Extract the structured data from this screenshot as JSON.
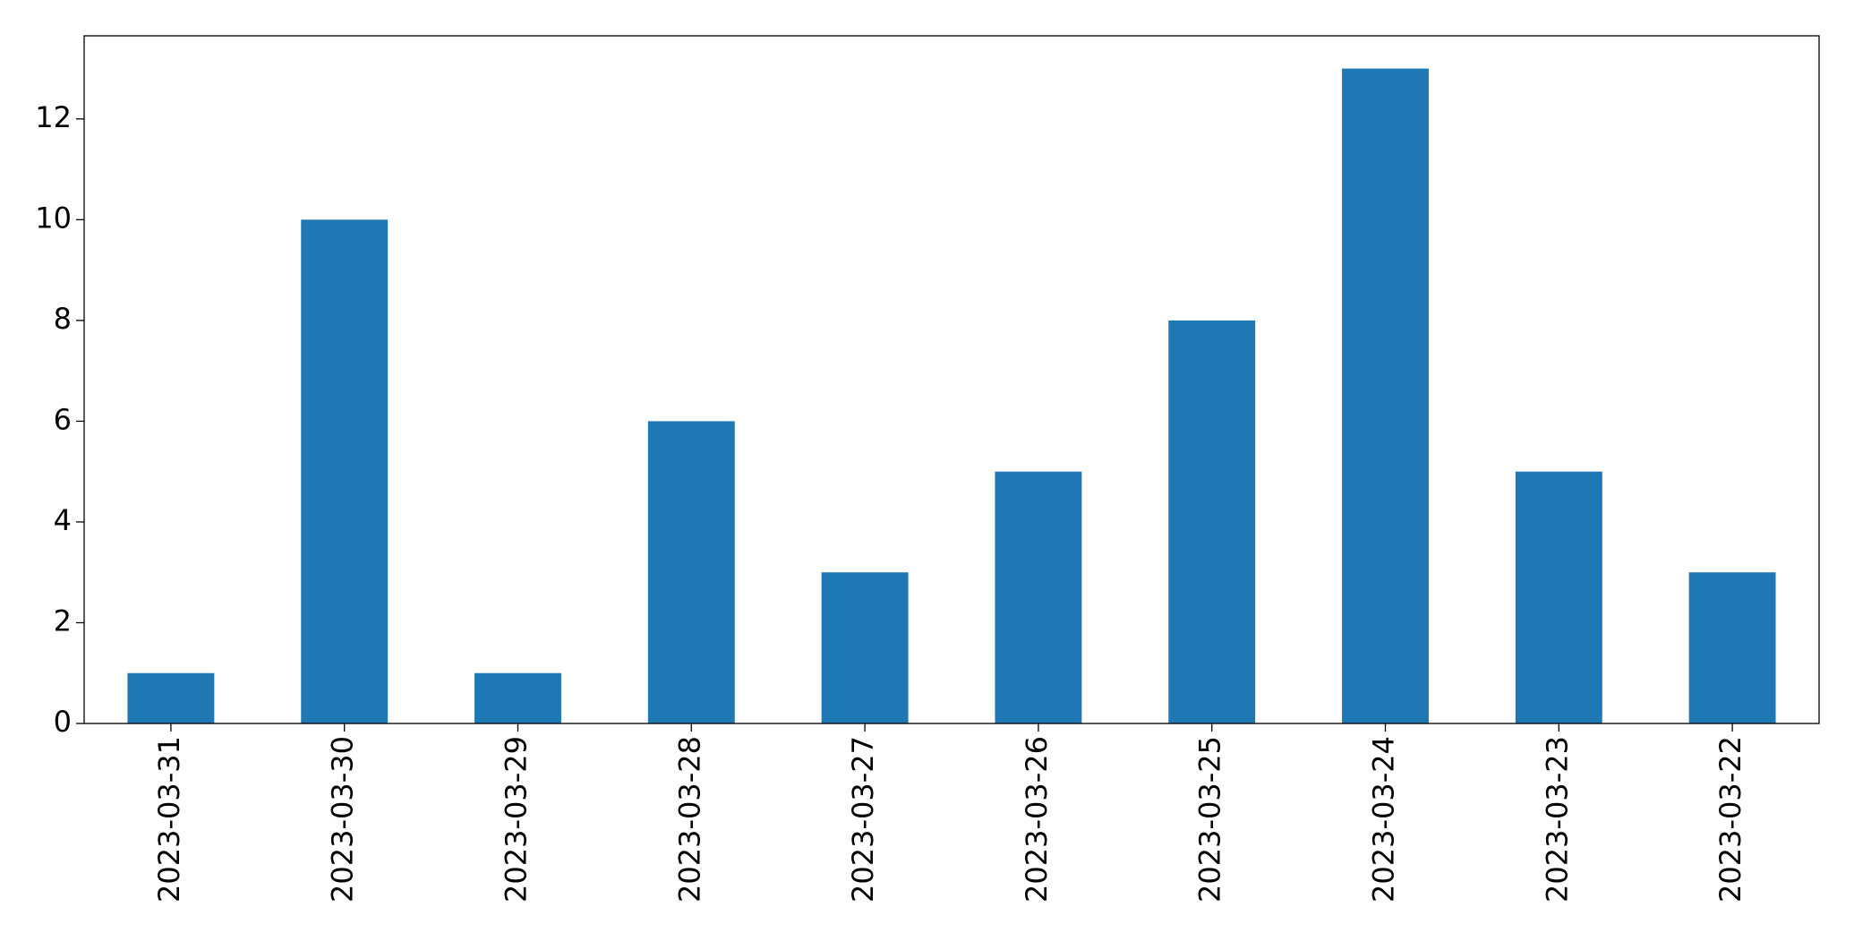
{
  "chart_data": {
    "type": "bar",
    "categories": [
      "2023-03-31",
      "2023-03-30",
      "2023-03-29",
      "2023-03-28",
      "2023-03-27",
      "2023-03-26",
      "2023-03-25",
      "2023-03-24",
      "2023-03-23",
      "2023-03-22"
    ],
    "values": [
      1,
      10,
      1,
      6,
      3,
      5,
      8,
      13,
      5,
      3
    ],
    "color": "#1f77b4",
    "ylim": [
      0,
      13.65
    ],
    "yticks": [
      0,
      2,
      4,
      6,
      8,
      10,
      12
    ],
    "grid": false
  }
}
